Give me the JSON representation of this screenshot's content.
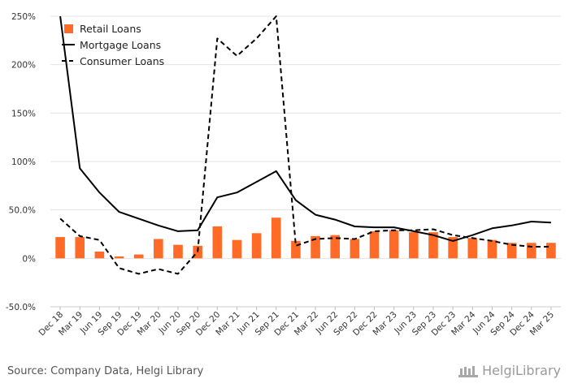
{
  "source": "Source: Company Data, Helgi Library",
  "brand": "HelgiLibrary",
  "colors": {
    "bar": "#ff6a26",
    "line": "#000000",
    "grid": "#e3e3e3",
    "text": "#333333"
  },
  "chart_data": {
    "type": "bar+line",
    "categories": [
      "Dec 18",
      "Mar 19",
      "Jun 19",
      "Sep 19",
      "Dec 19",
      "Mar 20",
      "Jun 20",
      "Sep 20",
      "Dec 20",
      "Mar 21",
      "Jun 21",
      "Sep 21",
      "Dec 21",
      "Mar 22",
      "Jun 22",
      "Sep 22",
      "Dec 22",
      "Mar 23",
      "Jun 23",
      "Sep 23",
      "Dec 23",
      "Mar 24",
      "Jun 24",
      "Sep 24",
      "Dec 24",
      "Mar 25"
    ],
    "ylim": [
      -50,
      250
    ],
    "yticks": [
      -50,
      0,
      50,
      100,
      150,
      200,
      250
    ],
    "ytick_labels": [
      "-50.0%",
      "0%",
      "50.0%",
      "100%",
      "150%",
      "200%",
      "250%"
    ],
    "grid": true,
    "legend_position": "top-left",
    "series": [
      {
        "name": "Retail Loans",
        "type": "bar",
        "values": [
          22,
          22,
          7,
          2,
          4,
          20,
          14,
          13,
          33,
          19,
          26,
          42,
          18,
          23,
          24,
          20,
          28,
          29,
          27,
          27,
          22,
          21,
          19,
          16,
          16,
          16
        ]
      },
      {
        "name": "Mortgage Loans",
        "type": "line",
        "style": "solid",
        "values": [
          250,
          93,
          68,
          48,
          41,
          34,
          28,
          29,
          63,
          68,
          79,
          90,
          60,
          45,
          40,
          33,
          32,
          32,
          28,
          24,
          18,
          24,
          31,
          34,
          38,
          37
        ]
      },
      {
        "name": "Consumer Loans",
        "type": "line",
        "style": "dashed",
        "values": [
          41,
          23,
          19,
          -10,
          -16,
          -11,
          -16,
          7,
          227,
          209,
          227,
          250,
          13,
          20,
          21,
          20,
          28,
          29,
          29,
          30,
          24,
          21,
          18,
          14,
          12,
          12
        ]
      }
    ]
  }
}
